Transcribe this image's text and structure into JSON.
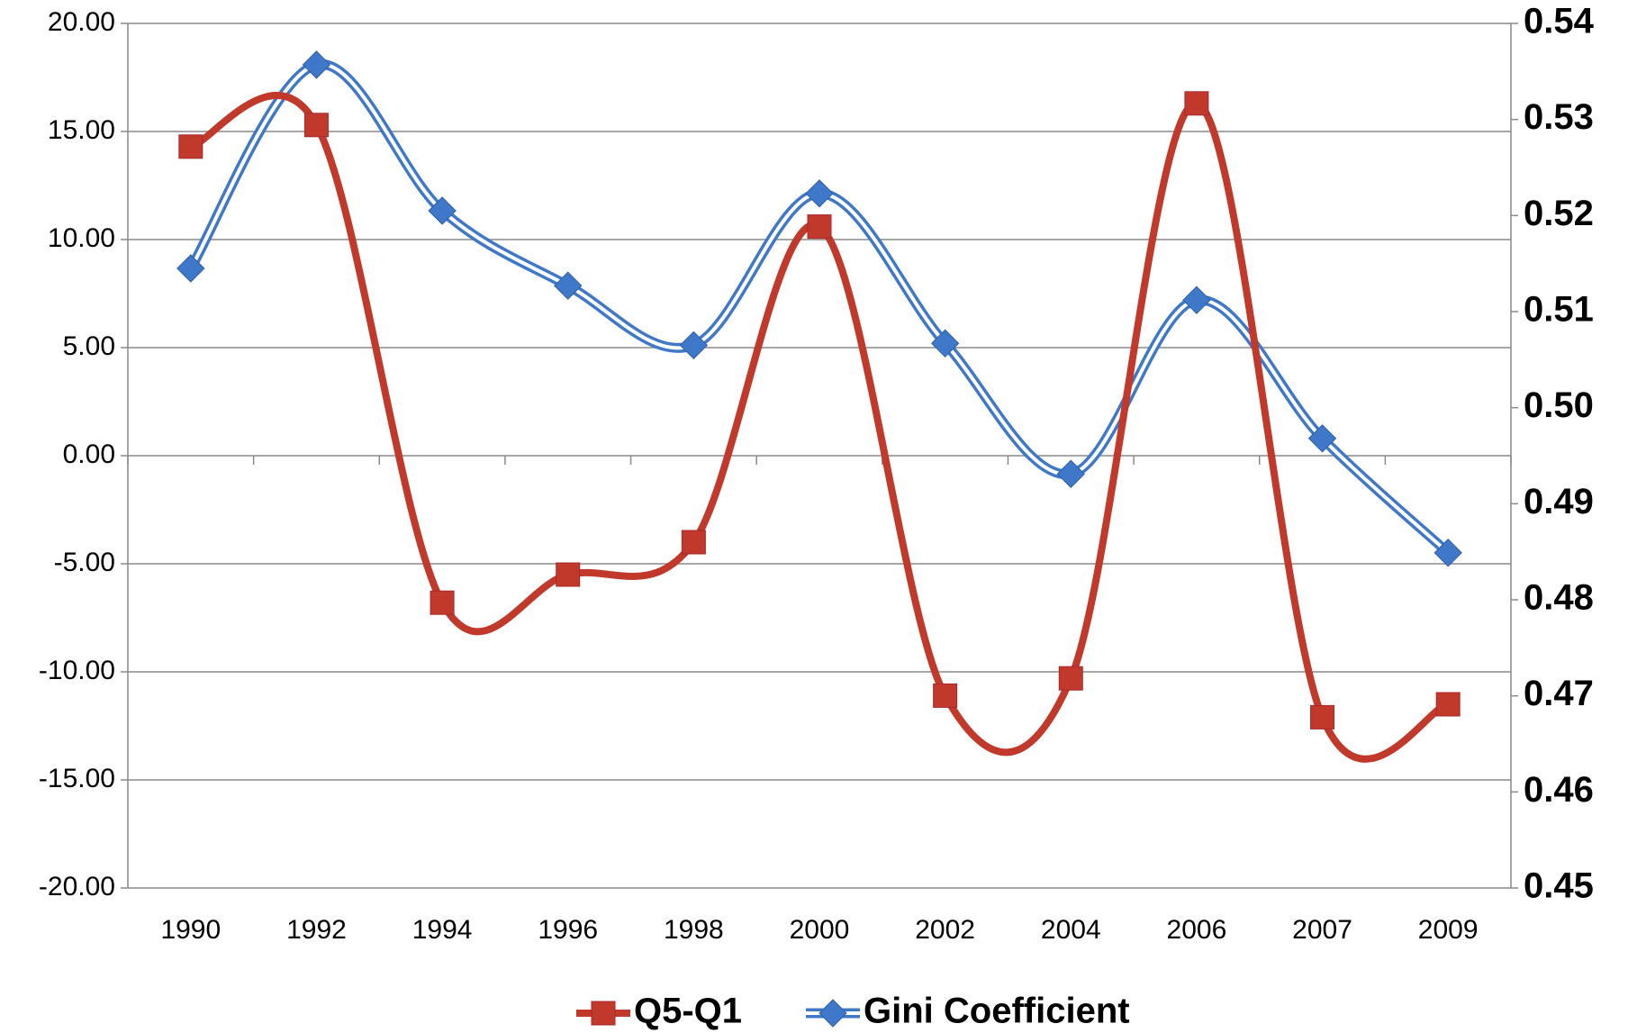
{
  "chart_data": {
    "type": "line",
    "categories": [
      "1990",
      "1992",
      "1994",
      "1996",
      "1998",
      "2000",
      "2002",
      "2004",
      "2006",
      "2007",
      "2009"
    ],
    "series": [
      {
        "name": "Q5-Q1",
        "color": "#c0392b",
        "values": [
          14.3,
          15.3,
          -6.8,
          -5.5,
          -4.0,
          10.6,
          -11.1,
          -10.3,
          16.3,
          -12.1,
          -11.5
        ]
      },
      {
        "name": "Gini Coefficient",
        "color": "#3f78c8",
        "axis": "y2",
        "values": [
          0.5145,
          0.5357,
          0.5205,
          0.5127,
          0.5065,
          0.5223,
          0.5067,
          0.4931,
          0.5112,
          0.4968,
          0.4849
        ]
      }
    ],
    "ylim": [
      -20,
      20
    ],
    "yticks": [
      {
        "value": -20,
        "label": "-20.00"
      },
      {
        "value": -15,
        "label": "-15.00"
      },
      {
        "value": -10,
        "label": "-10.00"
      },
      {
        "value": -5,
        "label": "-5.00"
      },
      {
        "value": 0,
        "label": "0.00"
      },
      {
        "value": 5,
        "label": "5.00"
      },
      {
        "value": 10,
        "label": "10.00"
      },
      {
        "value": 15,
        "label": "15.00"
      },
      {
        "value": 20,
        "label": "20.00"
      }
    ],
    "y2lim": [
      0.45,
      0.54
    ],
    "y2ticks": [
      0.45,
      0.46,
      0.47,
      0.48,
      0.49,
      {
        "value": 0.5,
        "label": "0.50"
      },
      0.51,
      0.52,
      0.53,
      0.54
    ],
    "grid": true,
    "legend": "bottom"
  }
}
